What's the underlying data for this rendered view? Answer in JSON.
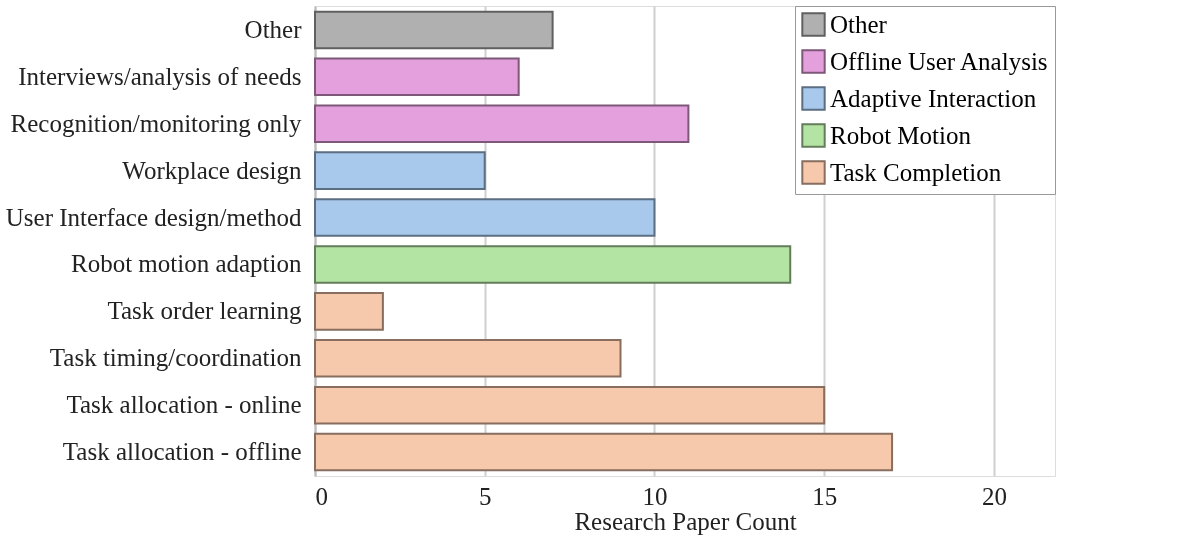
{
  "chart_data": {
    "type": "bar",
    "orientation": "horizontal",
    "xlabel": "Research Paper Count",
    "categories": [
      "Other",
      "Interviews/analysis of needs",
      "Recognition/monitoring only",
      "Workplace design",
      "User Interface design/method",
      "Robot motion adaption",
      "Task order learning",
      "Task timing/coordination",
      "Task allocation - online",
      "Task allocation - offline"
    ],
    "series": [
      {
        "name": "Other",
        "color": "#b0b0b0",
        "values": [
          7,
          null,
          null,
          null,
          null,
          null,
          null,
          null,
          null,
          null
        ]
      },
      {
        "name": "Offline User Analysis",
        "color": "#e4a0dc",
        "values": [
          null,
          6,
          11,
          null,
          null,
          null,
          null,
          null,
          null,
          null
        ]
      },
      {
        "name": "Adaptive Interaction",
        "color": "#a8c8ec",
        "values": [
          null,
          null,
          null,
          5,
          10,
          null,
          null,
          null,
          null,
          null
        ]
      },
      {
        "name": "Robot Motion",
        "color": "#b4e4a4",
        "values": [
          null,
          null,
          null,
          null,
          null,
          14,
          null,
          null,
          null,
          null
        ]
      },
      {
        "name": "Task Completion",
        "color": "#f6c8ac",
        "values": [
          null,
          null,
          null,
          null,
          null,
          null,
          2,
          9,
          15,
          17
        ]
      }
    ],
    "xlim": [
      0,
      21.8
    ],
    "xticks": [
      0,
      5,
      10,
      15,
      20
    ],
    "grid": "x",
    "legend": "top right"
  }
}
